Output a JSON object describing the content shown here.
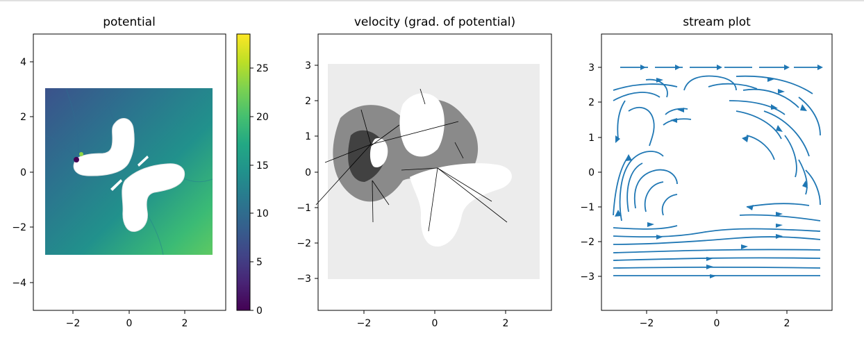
{
  "chart_data": [
    {
      "type": "heatmap",
      "title": "potential",
      "xlabel": "",
      "ylabel": "",
      "xlim": [
        -3.4,
        3.4
      ],
      "ylim": [
        -5,
        5
      ],
      "x_ticks": [
        "−2",
        "0",
        "2"
      ],
      "y_ticks": [
        "4",
        "2",
        "0",
        "−2",
        "−4"
      ],
      "colormap": "viridis",
      "colorbar": {
        "range": [
          0,
          28.5
        ],
        "ticks": [
          "0",
          "5",
          "10",
          "15",
          "20",
          "25"
        ]
      },
      "field_extent": {
        "x": [
          -3,
          3
        ],
        "y": [
          -3,
          3
        ]
      },
      "value_range": [
        0,
        28.5
      ]
    },
    {
      "type": "scatter",
      "title": "velocity (grad. of potential)",
      "xlabel": "",
      "ylabel": "",
      "xlim": [
        -3.3,
        3.3
      ],
      "ylim": [
        -3.9,
        3.9
      ],
      "x_ticks": [
        "−2",
        "0",
        "2"
      ],
      "y_ticks": [
        "3",
        "2",
        "1",
        "0",
        "−1",
        "−2",
        "−3"
      ],
      "field_extent": {
        "x": [
          -3,
          3
        ],
        "y": [
          -3,
          3
        ]
      }
    },
    {
      "type": "line",
      "title": "stream plot",
      "xlabel": "",
      "ylabel": "",
      "xlim": [
        -3.3,
        3.3
      ],
      "ylim": [
        -3.9,
        3.9
      ],
      "x_ticks": [
        "−2",
        "0",
        "2"
      ],
      "y_ticks": [
        "3",
        "2",
        "1",
        "0",
        "−1",
        "−2",
        "−3"
      ],
      "field_extent": {
        "x": [
          -3,
          3
        ],
        "y": [
          -3,
          3
        ]
      }
    }
  ],
  "colors": {
    "stream": "#1f77b4",
    "quiver": "#000000",
    "axis": "#000000",
    "viridis": [
      "#440154",
      "#482475",
      "#414487",
      "#355f8d",
      "#2a788e",
      "#21918c",
      "#22a884",
      "#44bf70",
      "#7ad151",
      "#bddf26",
      "#fde725"
    ]
  }
}
